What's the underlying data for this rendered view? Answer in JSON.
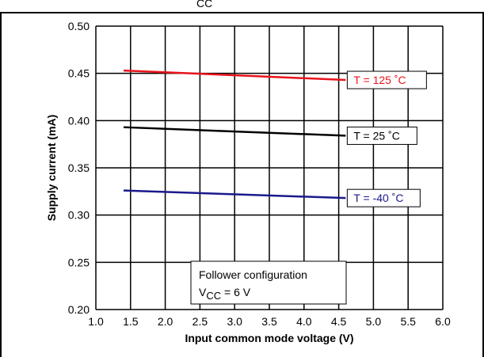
{
  "header_fragment": "CC",
  "chart_data": {
    "type": "line",
    "xlabel": "Input common mode voltage (V)",
    "ylabel": "Supply current (mA)",
    "xlim": [
      1.0,
      6.0
    ],
    "ylim": [
      0.2,
      0.5
    ],
    "x_ticks": [
      "1.0",
      "1.5",
      "2.0",
      "2.5",
      "3.0",
      "3.5",
      "4.0",
      "4.5",
      "5.0",
      "5.5",
      "6.0"
    ],
    "y_ticks": [
      "0.20",
      "0.25",
      "0.30",
      "0.35",
      "0.40",
      "0.45",
      "0.50"
    ],
    "grid": true,
    "series": [
      {
        "name": "T = 125 °C",
        "label": "T = 125 ˚C",
        "color": "#e8141c",
        "x": [
          1.4,
          4.6
        ],
        "y": [
          0.453,
          0.443
        ]
      },
      {
        "name": "T = 25 °C",
        "label": "T = 25 ˚C",
        "color": "#000000",
        "x": [
          1.4,
          4.6
        ],
        "y": [
          0.393,
          0.384
        ]
      },
      {
        "name": "T = -40 °C",
        "label": "T = -40 ˚C",
        "color": "#1a1a8c",
        "x": [
          1.4,
          4.6
        ],
        "y": [
          0.326,
          0.318
        ]
      }
    ],
    "annotation": {
      "line1": "Follower configuration",
      "line2_main": "V",
      "line2_sub": "CC",
      "line2_rest": " = 6 V"
    }
  }
}
